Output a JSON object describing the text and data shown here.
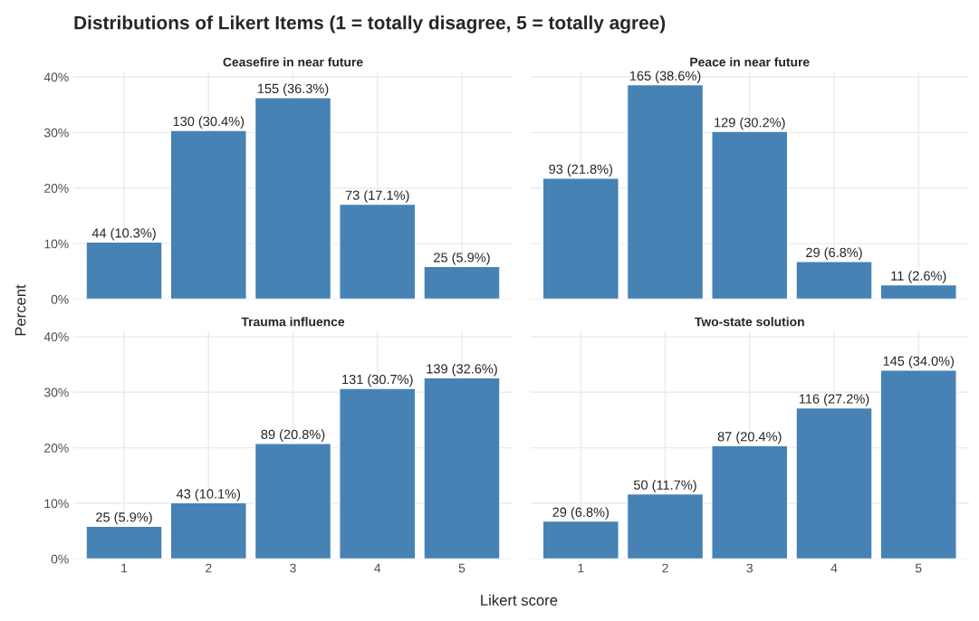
{
  "chart_data": [
    {
      "type": "bar",
      "title": "Distributions of Likert Items (1 = totally disagree, 5 = totally agree)",
      "subtitle": "Ceasefire in near future",
      "ylabel": "Percent",
      "categories": [
        "1",
        "2",
        "3",
        "4",
        "5"
      ],
      "values": [
        10.3,
        30.4,
        36.3,
        17.1,
        5.9
      ],
      "value_labels": [
        "44 (10.3%)",
        "130 (30.4%)",
        "155 (36.3%)",
        "73 (17.1%)",
        "25 (5.9%)"
      ],
      "color": "#4682b4",
      "ylim": [
        0,
        41
      ],
      "yticks": [
        {
          "value": 0,
          "label": "0%"
        },
        {
          "value": 10,
          "label": "10%"
        },
        {
          "value": 20,
          "label": "20%"
        },
        {
          "value": 30,
          "label": "30%"
        },
        {
          "value": 40,
          "label": "40%"
        }
      ],
      "grid": true,
      "tick_labels": "y"
    },
    {
      "type": "bar",
      "subtitle": "Peace in near future",
      "categories": [
        "1",
        "2",
        "3",
        "4",
        "5"
      ],
      "values": [
        21.8,
        38.6,
        30.2,
        6.8,
        2.6
      ],
      "value_labels": [
        "93 (21.8%)",
        "165 (38.6%)",
        "129 (30.2%)",
        "29 (6.8%)",
        "11 (2.6%)"
      ],
      "color": "#4682b4",
      "ylim": [
        0,
        41
      ],
      "yticks": [
        {
          "value": 0,
          "label": null
        },
        {
          "value": 10,
          "label": null
        },
        {
          "value": 20,
          "label": null
        },
        {
          "value": 30,
          "label": null
        },
        {
          "value": 40,
          "label": null
        }
      ],
      "grid": true,
      "tick_labels": false
    },
    {
      "type": "bar",
      "subtitle": "Trauma influence",
      "xlabel": "Likert score",
      "categories": [
        "1",
        "2",
        "3",
        "4",
        "5"
      ],
      "values": [
        5.9,
        10.1,
        20.8,
        30.7,
        32.6
      ],
      "value_labels": [
        "25 (5.9%)",
        "43 (10.1%)",
        "89 (20.8%)",
        "131 (30.7%)",
        "139 (32.6%)"
      ],
      "color": "#4682b4",
      "ylim": [
        0,
        41
      ],
      "yticks": [
        {
          "value": 0,
          "label": "0%"
        },
        {
          "value": 10,
          "label": "10%"
        },
        {
          "value": 20,
          "label": "20%"
        },
        {
          "value": 30,
          "label": "30%"
        },
        {
          "value": 40,
          "label": "40%"
        }
      ],
      "grid": true
    },
    {
      "type": "bar",
      "subtitle": "Two-state solution",
      "categories": [
        "1",
        "2",
        "3",
        "4",
        "5"
      ],
      "values": [
        6.8,
        11.7,
        20.4,
        27.2,
        34.0
      ],
      "value_labels": [
        "29 (6.8%)",
        "50 (11.7%)",
        "87 (20.4%)",
        "116 (27.2%)",
        "145 (34.0%)"
      ],
      "color": "#4682b4",
      "ylim": [
        0,
        41
      ],
      "yticks": [
        {
          "value": 0,
          "label": null
        },
        {
          "value": 10,
          "label": null
        },
        {
          "value": 20,
          "label": null
        },
        {
          "value": 30,
          "label": null
        },
        {
          "value": 40,
          "label": null
        }
      ],
      "grid": true,
      "tick_labels": "x"
    }
  ]
}
